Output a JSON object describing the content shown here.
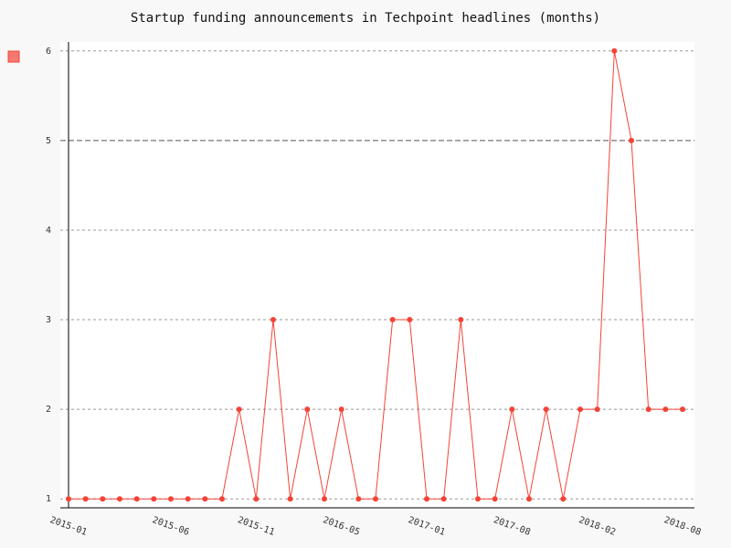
{
  "chart_data": {
    "type": "line",
    "title": "Startup funding announcements in Techpoint headlines (months)",
    "categories": [
      "2015-01",
      null,
      null,
      null,
      null,
      null,
      "2015-06",
      null,
      null,
      null,
      null,
      "2015-11",
      null,
      null,
      null,
      null,
      "2016-05",
      null,
      null,
      null,
      null,
      "2017-01",
      null,
      null,
      null,
      null,
      "2017-08",
      null,
      null,
      null,
      null,
      "2018-02",
      null,
      null,
      null,
      null,
      "2018-08"
    ],
    "series": [
      {
        "color": "#f44336",
        "values": [
          1,
          1,
          1,
          1,
          1,
          1,
          1,
          1,
          1,
          1,
          2,
          1,
          3,
          1,
          2,
          1,
          2,
          1,
          1,
          3,
          3,
          1,
          1,
          3,
          1,
          1,
          2,
          1,
          2,
          1,
          2,
          2,
          6,
          5,
          2,
          2,
          2
        ]
      }
    ],
    "ylim": [
      0.9,
      6.1
    ],
    "yticks": [
      1,
      2,
      3,
      4,
      5,
      6
    ],
    "major_ytick": 5,
    "grid": true,
    "legend": "top-left"
  }
}
